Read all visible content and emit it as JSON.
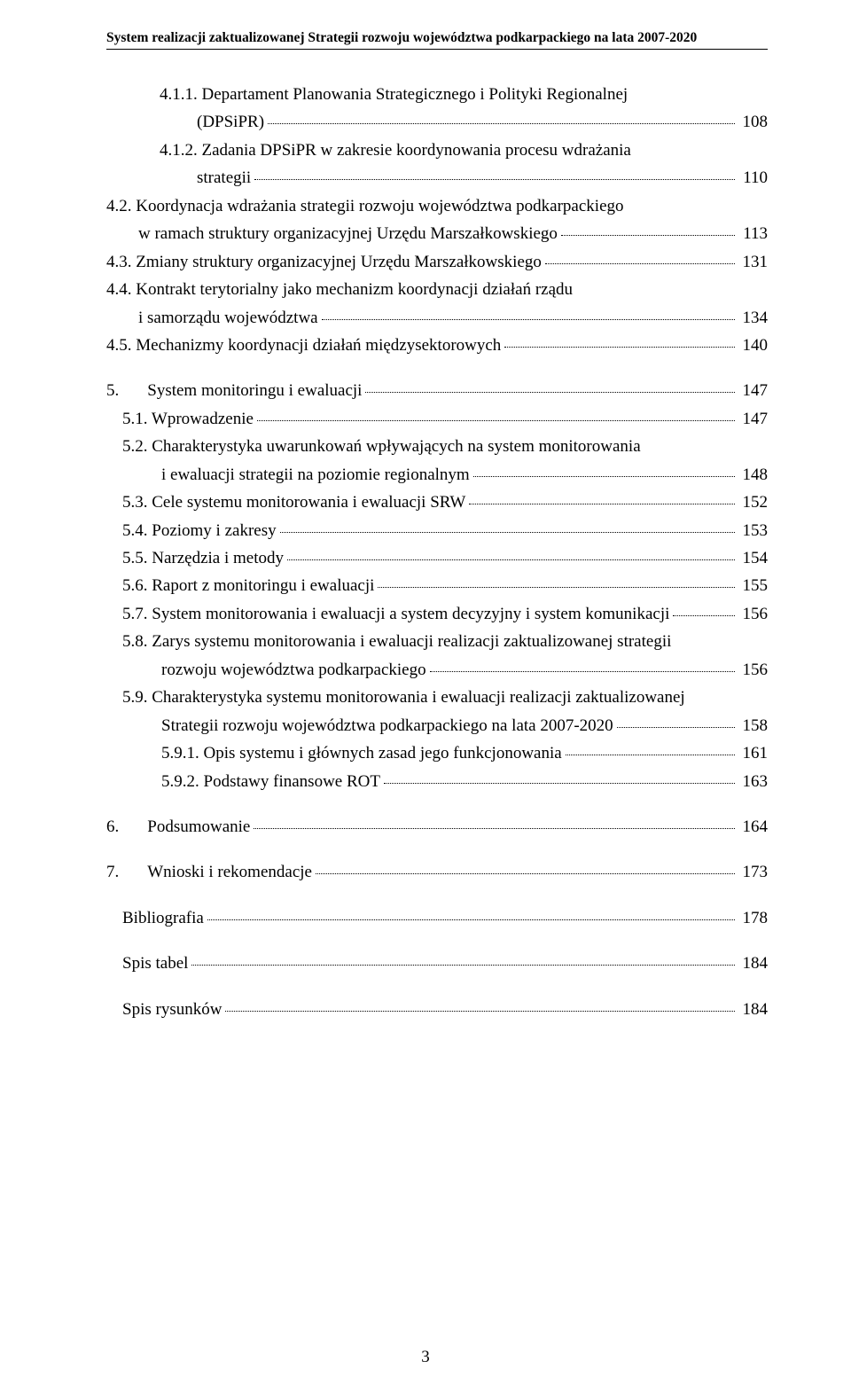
{
  "header": "System realizacji zaktualizowanej Strategii rozwoju województwa podkarpackiego na lata 2007-2020",
  "page_number": "3",
  "colors": {
    "text": "#000000",
    "background": "#ffffff",
    "leader": "#000000",
    "header_rule": "#000000"
  },
  "typography": {
    "font_family": "Times New Roman",
    "header_fontsize_pt": 11,
    "header_weight": "bold",
    "body_fontsize_pt": 14,
    "line_height": 1.55
  },
  "toc": [
    {
      "indent": "1",
      "label": "4.1.1. Departament Planowania Strategicznego i Polityki Regionalnej",
      "leader": false
    },
    {
      "indent": "1b",
      "label": "(DPSiPR)",
      "leader": true,
      "page": " 108"
    },
    {
      "indent": "1",
      "label": "4.1.2. Zadania DPSiPR w zakresie koordynowania procesu wdrażania",
      "leader": false
    },
    {
      "indent": "1b",
      "label": "strategii",
      "leader": true,
      "page": " 110"
    },
    {
      "indent": "0",
      "label": "4.2. Koordynacja wdrażania strategii rozwoju województwa podkarpackiego",
      "leader": false
    },
    {
      "indent": "0c",
      "label": "w ramach struktury organizacyjnej Urzędu Marszałkowskiego",
      "leader": true,
      "page": " 113"
    },
    {
      "indent": "0",
      "label": "4.3. Zmiany struktury organizacyjnej Urzędu Marszałkowskiego",
      "leader": true,
      "page": " 131"
    },
    {
      "indent": "0",
      "label": "4.4. Kontrakt terytorialny jako mechanizm koordynacji działań rządu",
      "leader": false
    },
    {
      "indent": "0c",
      "label": "i samorządu województwa",
      "leader": true,
      "page": " 134"
    },
    {
      "indent": "0",
      "label": "4.5. Mechanizmy koordynacji działań międzysektorowych",
      "leader": true,
      "page": " 140"
    },
    {
      "gap": true
    },
    {
      "indent": "num",
      "num": "5.",
      "label": "System monitoringu i ewaluacji",
      "leader": true,
      "page": " 147"
    },
    {
      "indent": "s",
      "label": "5.1. Wprowadzenie",
      "leader": true,
      "page": " 147"
    },
    {
      "indent": "s",
      "label": "5.2. Charakterystyka uwarunkowań wpływających na system monitorowania",
      "leader": false
    },
    {
      "indent": "sc",
      "label": "i ewaluacji strategii na poziomie regionalnym",
      "leader": true,
      "page": " 148"
    },
    {
      "indent": "s",
      "label": "5.3. Cele systemu monitorowania i ewaluacji SRW",
      "leader": true,
      "page": " 152"
    },
    {
      "indent": "s",
      "label": "5.4. Poziomy i zakresy",
      "leader": true,
      "page": " 153"
    },
    {
      "indent": "s",
      "label": "5.5. Narzędzia i metody",
      "leader": true,
      "page": " 154"
    },
    {
      "indent": "s",
      "label": "5.6. Raport z monitoringu i ewaluacji",
      "leader": true,
      "page": " 155"
    },
    {
      "indent": "s",
      "label": "5.7. System monitorowania i ewaluacji a system decyzyjny i system komunikacji",
      "leader": true,
      "page": " 156"
    },
    {
      "indent": "s",
      "label": "5.8. Zarys systemu monitorowania i ewaluacji realizacji zaktualizowanej strategii",
      "leader": false
    },
    {
      "indent": "sc",
      "label": "rozwoju województwa podkarpackiego",
      "leader": true,
      "page": " 156"
    },
    {
      "indent": "s",
      "label": "5.9. Charakterystyka systemu monitorowania i ewaluacji realizacji zaktualizowanej",
      "leader": false
    },
    {
      "indent": "sc",
      "label": "Strategii rozwoju województwa podkarpackiego na lata 2007-2020",
      "leader": true,
      "page": " 158"
    },
    {
      "indent": "ss",
      "label": "5.9.1. Opis systemu i głównych zasad jego funkcjonowania",
      "leader": true,
      "page": " 161"
    },
    {
      "indent": "ss",
      "label": "5.9.2. Podstawy finansowe ROT",
      "leader": true,
      "page": " 163"
    },
    {
      "gap": true
    },
    {
      "indent": "num",
      "num": "6.",
      "label": "Podsumowanie",
      "leader": true,
      "page": " 164"
    },
    {
      "gap": true
    },
    {
      "indent": "num",
      "num": "7.",
      "label": "Wnioski i rekomendacje",
      "leader": true,
      "page": " 173"
    },
    {
      "gap": true
    },
    {
      "indent": "s",
      "label": "Bibliografia",
      "leader": true,
      "page": " 178"
    },
    {
      "gap": true
    },
    {
      "indent": "s",
      "label": "Spis tabel",
      "leader": true,
      "page": " 184"
    },
    {
      "gap": true
    },
    {
      "indent": "s",
      "label": "Spis rysunków",
      "leader": true,
      "page": " 184"
    }
  ]
}
